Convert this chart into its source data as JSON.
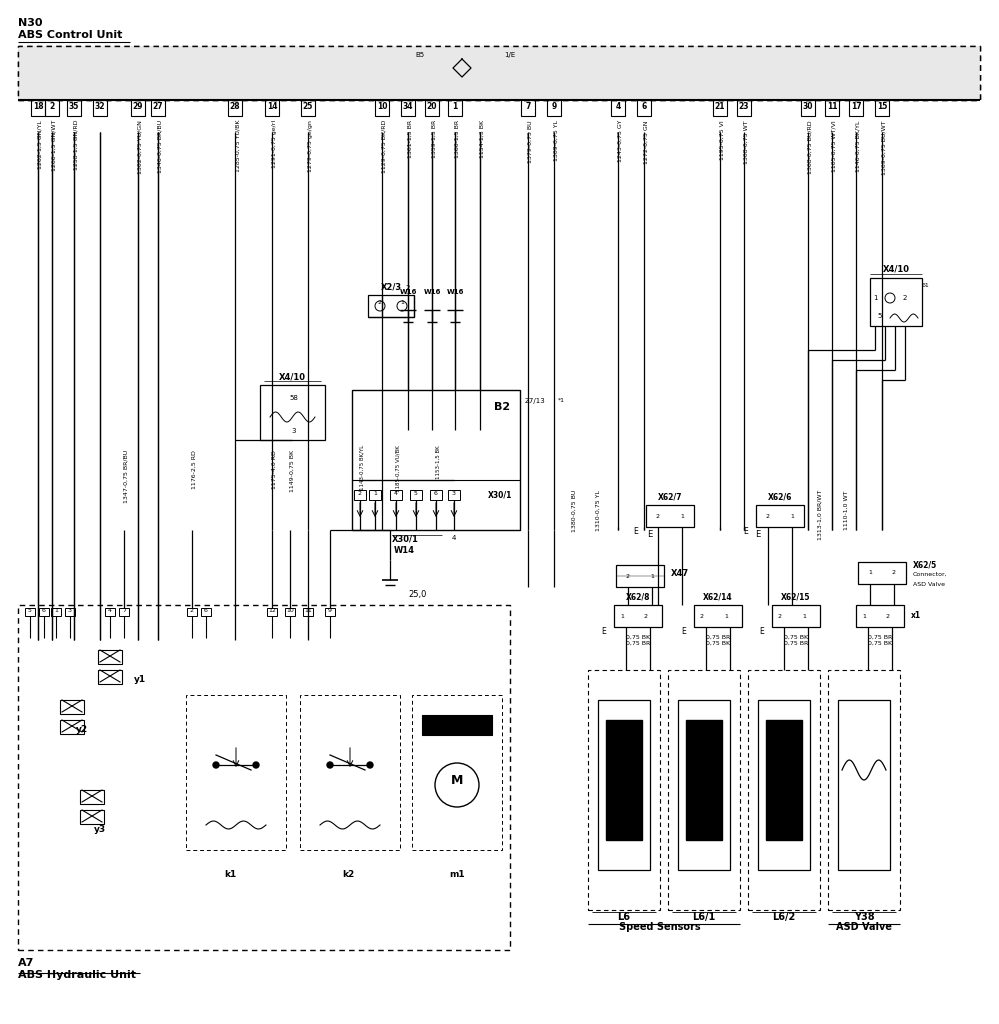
{
  "bg_color": "#ffffff",
  "title_top1": "N30",
  "title_top2": "ABS Control Unit",
  "title_bot1": "A7",
  "title_bot2": "ABS Hydraulic Unit",
  "label_speed": "Speed Sensors",
  "label_asd": "ASD Valve",
  "pin_nums": [
    "18",
    "2",
    "35",
    "32",
    "29",
    "27",
    "28",
    "14",
    "25",
    "10",
    "34",
    "20",
    "1",
    "7",
    "9",
    "4",
    "6",
    "21",
    "23",
    "30",
    "11",
    "17",
    "15"
  ],
  "wire_labels": [
    "1262-1,5 GN/YL",
    "1266-1,5 GN/WT",
    "1258-1,5 GN/RD",
    "1302-0,75 YU/GN",
    "1346-0,75 BR/BU",
    "1285-0,75 YU/BK",
    "1291-0,75 ge/rl",
    "1279-0,75 ge/gn",
    "1129-0,75 BK/RD",
    "1361-1,5 BR",
    "1359-1,5 BR",
    "1360-1,5 BR",
    "1154-1,3 BK",
    "1379-0,75 BU",
    "1309-0,75 YL",
    "1243-0,75 GY",
    "1272-0,75 GN",
    "1195-0,75 VI",
    "1308-0,75 WT",
    "1368-0,75 BU/RD",
    "1105-0,75 WT/VI",
    "1146-0,75 BK/YL",
    "1369-0,75 BU/WT"
  ]
}
